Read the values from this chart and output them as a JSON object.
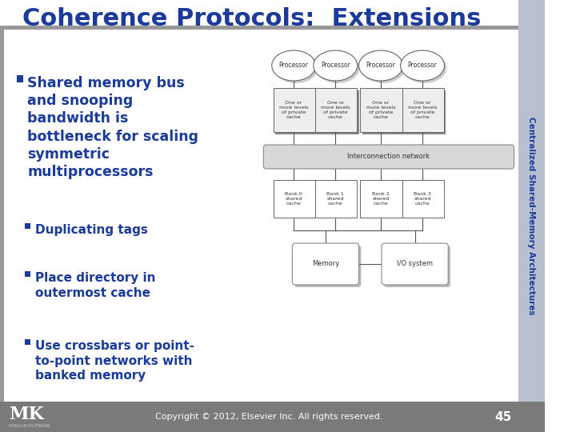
{
  "title": "Coherence Protocols:  Extensions",
  "title_color": "#1a3a9c",
  "title_fontsize": 22,
  "slide_bg": "#ffffff",
  "bullet_color": "#1a3a9c",
  "bullet_main": "Shared memory bus\nand snooping\nbandwidth is\nbottleneck for scaling\nsymmetric\nmultiprocessors",
  "sub_bullets": [
    "Duplicating tags",
    "Place directory in\noutermost cache",
    "Use crossbars or point-\nto-point networks with\nbanked memory"
  ],
  "right_sidebar_text": "Centralized Shared-Memory Architectures",
  "right_sidebar_bg": "#b8bfcf",
  "footer_text": "Copyright © 2012, Elsevier Inc. All rights reserved.",
  "footer_page": "45",
  "footer_bg": "#7a7a7a",
  "top_bar_color": "#999999",
  "left_bar_color": "#999999",
  "diagram": {
    "processors": [
      "Processor",
      "Processor",
      "Processor",
      "Processor"
    ],
    "cache_labels": [
      "One or\nmore levels\nof private\ncache",
      "One or\nmore levels\nof private\ncache",
      "One or\nmore levels\nof private\ncache",
      "One or\nmore levels\nof private\ncache"
    ],
    "interconnect_label": "Interconnection network",
    "bank_labels": [
      "Bank 0\nshared\ncache",
      "Bank 1\nshared\ncache",
      "Bank 2\nshared\ncache",
      "Bank 3\nshared\ncache"
    ],
    "bottom_labels": [
      "Memory",
      "I/O system"
    ]
  }
}
